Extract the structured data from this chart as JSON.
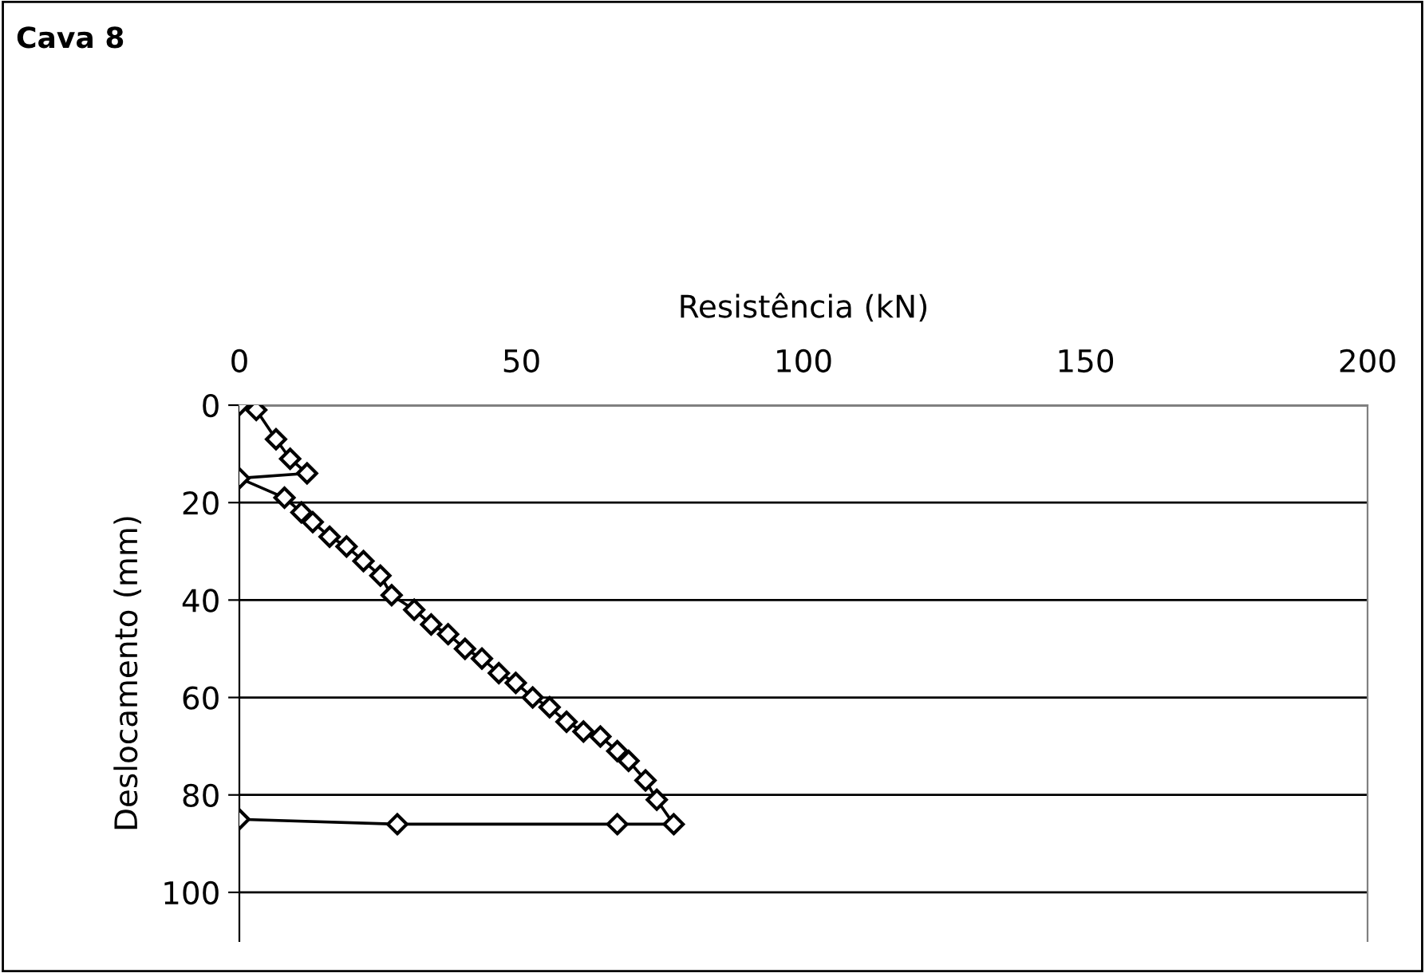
{
  "chart_data": {
    "type": "line",
    "title": "Cava 8",
    "xlabel": "Resistência (kN)",
    "ylabel": "Deslocamento (mm)",
    "series": [
      {
        "color": "#000000",
        "x": [
          0,
          3,
          6.5,
          9,
          12,
          0,
          8,
          11,
          13,
          16,
          19,
          22,
          25,
          27,
          31,
          34,
          37,
          40,
          43,
          46,
          49,
          52,
          55,
          58,
          61,
          64,
          67,
          69,
          72,
          74,
          77,
          67,
          28,
          0
        ],
        "values": [
          0,
          1,
          7,
          11,
          14,
          15,
          19,
          22,
          24,
          27,
          29,
          32,
          35,
          39,
          42,
          45,
          47,
          50,
          52,
          55,
          57,
          60,
          62,
          65,
          67,
          68,
          71,
          73,
          77,
          81,
          86,
          86,
          86,
          85
        ]
      }
    ],
    "xlim": [
      0,
      200
    ],
    "xticks": [
      0,
      50,
      100,
      150,
      200
    ],
    "ylim": [
      110,
      0
    ],
    "yticks": [
      0,
      20,
      40,
      60,
      80,
      100
    ],
    "grid": "y",
    "marker": "diamond",
    "line_style": "solid",
    "legend": false
  }
}
